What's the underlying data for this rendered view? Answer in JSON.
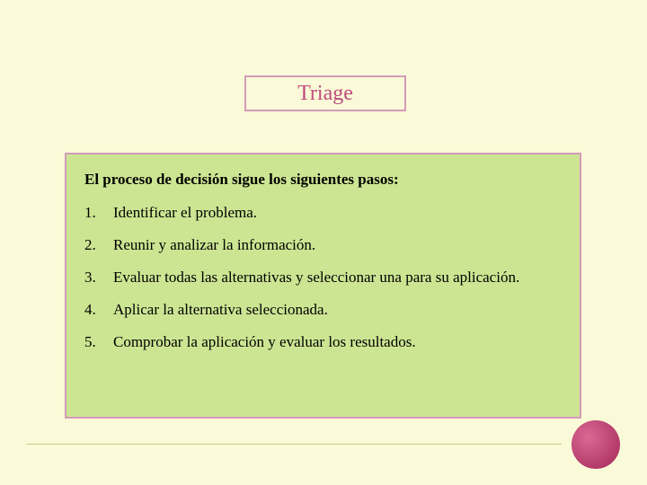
{
  "slide": {
    "background_color": "#fafad8",
    "title_box": {
      "text": "Triage",
      "text_color": "#c04a7c",
      "border_color": "#d49bb8",
      "fill_color": "#fafad8",
      "font_size_pt": 24
    },
    "content_box": {
      "fill_color": "#cce592",
      "border_color": "#d49bb8",
      "intro": "El proceso de decisión sigue los siguientes pasos:",
      "intro_font_weight": "bold",
      "font_size_pt": 17,
      "steps": [
        {
          "num": "1.",
          "text": "Identificar el problema."
        },
        {
          "num": "2.",
          "text": "Reunir y analizar la información."
        },
        {
          "num": "3.",
          "text": "Evaluar todas las alternativas y seleccionar una para su aplicación."
        },
        {
          "num": "4.",
          "text": "Aplicar la alternativa seleccionada."
        },
        {
          "num": "5.",
          "text": "Comprobar la aplicación y evaluar los resultados."
        }
      ]
    },
    "decoration": {
      "circle_color": "#b43a6a",
      "baseline_color": "#c9c98a"
    }
  }
}
